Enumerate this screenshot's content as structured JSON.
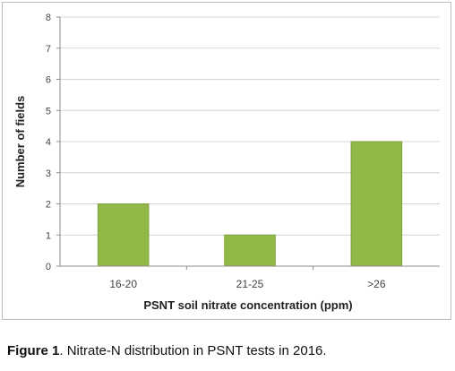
{
  "chart_data": {
    "type": "bar",
    "categories": [
      "16-20",
      "21-25",
      ">26"
    ],
    "values": [
      2,
      1,
      4
    ],
    "xlabel": "PSNT soil nitrate concentration (ppm)",
    "ylabel": "Number of fields",
    "ylim": [
      0,
      8
    ],
    "yticks": [
      "0",
      "1",
      "2",
      "3",
      "4",
      "5",
      "6",
      "7",
      "8"
    ],
    "grid": true,
    "legend": "none"
  },
  "colors": {
    "bar_fill": "#92b947",
    "bar_stroke": "#7ea23b",
    "grid": "#d4d4d4",
    "axis": "#8c8c8c",
    "tick_text": "#444444",
    "label_text": "#222222"
  },
  "caption": {
    "label": "Figure 1",
    "text": ". Nitrate-N distribution in PSNT tests in 2016."
  }
}
